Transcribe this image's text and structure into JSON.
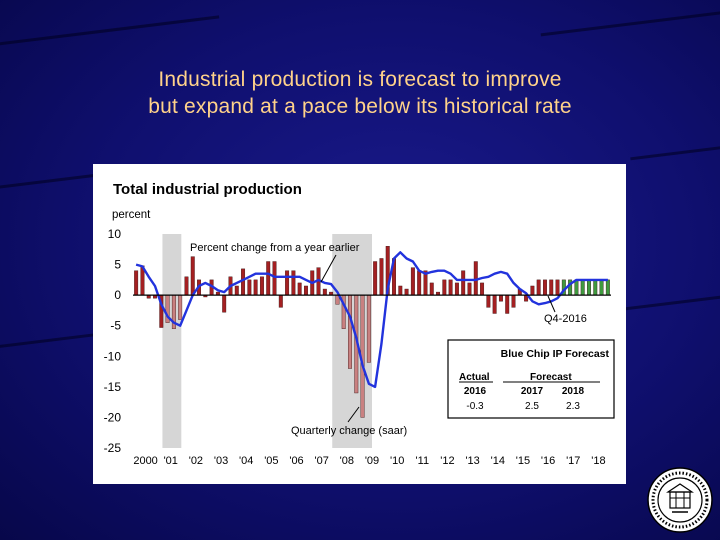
{
  "slide": {
    "title_line1": "Industrial production is forecast to improve",
    "title_line2": "but expand at a pace below its historical rate"
  },
  "chart_data": {
    "type": "bar",
    "title": "Total industrial production",
    "ylabel": "percent",
    "ylim": [
      -25,
      10
    ],
    "yticks": [
      10,
      5,
      0,
      -5,
      -10,
      -15,
      -20,
      -25
    ],
    "x_tick_labels": [
      "2000",
      "'01",
      "'02",
      "'03",
      "'04",
      "'05",
      "'06",
      "'07",
      "'08",
      "'09",
      "'10",
      "'11",
      "'12",
      "'13",
      "'14",
      "'15",
      "'16",
      "'17",
      "'18"
    ],
    "recessions": [
      [
        2001.17,
        2001.92
      ],
      [
        2007.92,
        2009.5
      ]
    ],
    "annotations": {
      "line_label": "Percent change from a year earlier",
      "bar_label": "Quarterly change (saar)",
      "last_actual": "Q4-2016"
    },
    "series": [
      {
        "name": "Quarterly change (saar)",
        "kind": "bar",
        "start": 2000.0,
        "values": [
          4.0,
          4.8,
          -0.5,
          -0.5,
          -5.3,
          -4.5,
          -5.5,
          -4.0,
          3.0,
          6.3,
          2.5,
          -0.3,
          2.5,
          0.5,
          -2.8,
          3.0,
          1.5,
          4.3,
          2.5,
          2.5,
          3.0,
          5.5,
          5.5,
          -2.0,
          4.0,
          4.0,
          2.0,
          1.5,
          4.0,
          4.5,
          1.0,
          0.5,
          -1.5,
          -5.5,
          -12.0,
          -16.0,
          -20.0,
          -11.0,
          5.5,
          6.0,
          8.0,
          6.0,
          1.5,
          1.0,
          4.5,
          4.0,
          4.0,
          2.0,
          0.5,
          2.5,
          2.5,
          2.0,
          4.0,
          2.0,
          5.5,
          2.0,
          -2.0,
          -3.0,
          -1.0,
          -3.0,
          -2.0,
          1.0,
          -1.0,
          1.5,
          2.5,
          2.5,
          2.5,
          2.5,
          2.5,
          2.5,
          2.5,
          2.5,
          2.5,
          2.5,
          2.5,
          2.5
        ]
      },
      {
        "name": "Percent change from a year earlier",
        "kind": "line",
        "points": [
          [
            2000.0,
            5.0
          ],
          [
            2000.25,
            4.7
          ],
          [
            2000.5,
            3.0
          ],
          [
            2000.75,
            1.5
          ],
          [
            2001.0,
            -1.5
          ],
          [
            2001.25,
            -3.5
          ],
          [
            2001.5,
            -4.5
          ],
          [
            2001.75,
            -5.0
          ],
          [
            2002.0,
            -2.5
          ],
          [
            2002.25,
            0.0
          ],
          [
            2002.5,
            1.5
          ],
          [
            2002.75,
            2.0
          ],
          [
            2003.0,
            1.5
          ],
          [
            2003.25,
            0.8
          ],
          [
            2003.5,
            0.5
          ],
          [
            2003.75,
            1.5
          ],
          [
            2004.0,
            2.0
          ],
          [
            2004.25,
            2.5
          ],
          [
            2004.5,
            3.0
          ],
          [
            2004.75,
            3.5
          ],
          [
            2005.0,
            3.5
          ],
          [
            2005.25,
            3.5
          ],
          [
            2005.5,
            3.0
          ],
          [
            2005.75,
            3.0
          ],
          [
            2006.0,
            3.0
          ],
          [
            2006.25,
            3.0
          ],
          [
            2006.5,
            3.0
          ],
          [
            2006.75,
            2.5
          ],
          [
            2007.0,
            2.0
          ],
          [
            2007.25,
            2.5
          ],
          [
            2007.5,
            2.0
          ],
          [
            2007.75,
            1.8
          ],
          [
            2008.0,
            0.5
          ],
          [
            2008.25,
            -1.5
          ],
          [
            2008.5,
            -3.5
          ],
          [
            2008.75,
            -7.0
          ],
          [
            2009.0,
            -11.5
          ],
          [
            2009.25,
            -14.5
          ],
          [
            2009.5,
            -15.0
          ],
          [
            2009.75,
            -8.0
          ],
          [
            2010.0,
            1.0
          ],
          [
            2010.25,
            6.0
          ],
          [
            2010.5,
            7.0
          ],
          [
            2010.75,
            6.0
          ],
          [
            2011.0,
            5.5
          ],
          [
            2011.25,
            4.0
          ],
          [
            2011.5,
            3.5
          ],
          [
            2011.75,
            3.8
          ],
          [
            2012.0,
            4.0
          ],
          [
            2012.25,
            4.0
          ],
          [
            2012.5,
            3.5
          ],
          [
            2012.75,
            2.5
          ],
          [
            2013.0,
            2.5
          ],
          [
            2013.25,
            2.5
          ],
          [
            2013.5,
            2.5
          ],
          [
            2013.75,
            2.8
          ],
          [
            2014.0,
            3.0
          ],
          [
            2014.25,
            3.5
          ],
          [
            2014.5,
            3.8
          ],
          [
            2014.75,
            3.5
          ],
          [
            2015.0,
            2.0
          ],
          [
            2015.25,
            1.0
          ],
          [
            2015.5,
            0.3
          ],
          [
            2015.75,
            -1.0
          ],
          [
            2016.0,
            -1.5
          ],
          [
            2016.25,
            -1.3
          ],
          [
            2016.5,
            -1.0
          ],
          [
            2016.75,
            -0.5
          ],
          [
            2017.0,
            0.8
          ],
          [
            2017.25,
            1.8
          ],
          [
            2017.5,
            2.5
          ],
          [
            2017.75,
            2.5
          ],
          [
            2018.0,
            2.5
          ],
          [
            2018.25,
            2.5
          ],
          [
            2018.5,
            2.5
          ],
          [
            2018.75,
            2.5
          ]
        ]
      }
    ],
    "forecast_box": {
      "title": "Blue Chip IP Forecast",
      "actual_header": "Actual",
      "forecast_header": "Forecast",
      "columns": [
        {
          "year": "2016",
          "value": "-0.3"
        },
        {
          "year": "2017",
          "value": "2.5"
        },
        {
          "year": "2018",
          "value": "2.3"
        }
      ]
    }
  },
  "colors": {
    "hist_bar": "#a42022",
    "recession_bar": "#c98080",
    "forecast_bar": "#3f9a3f",
    "line": "#2233dd",
    "recession_shade": "#d6d6d6",
    "title_text": "#ffd28a"
  }
}
